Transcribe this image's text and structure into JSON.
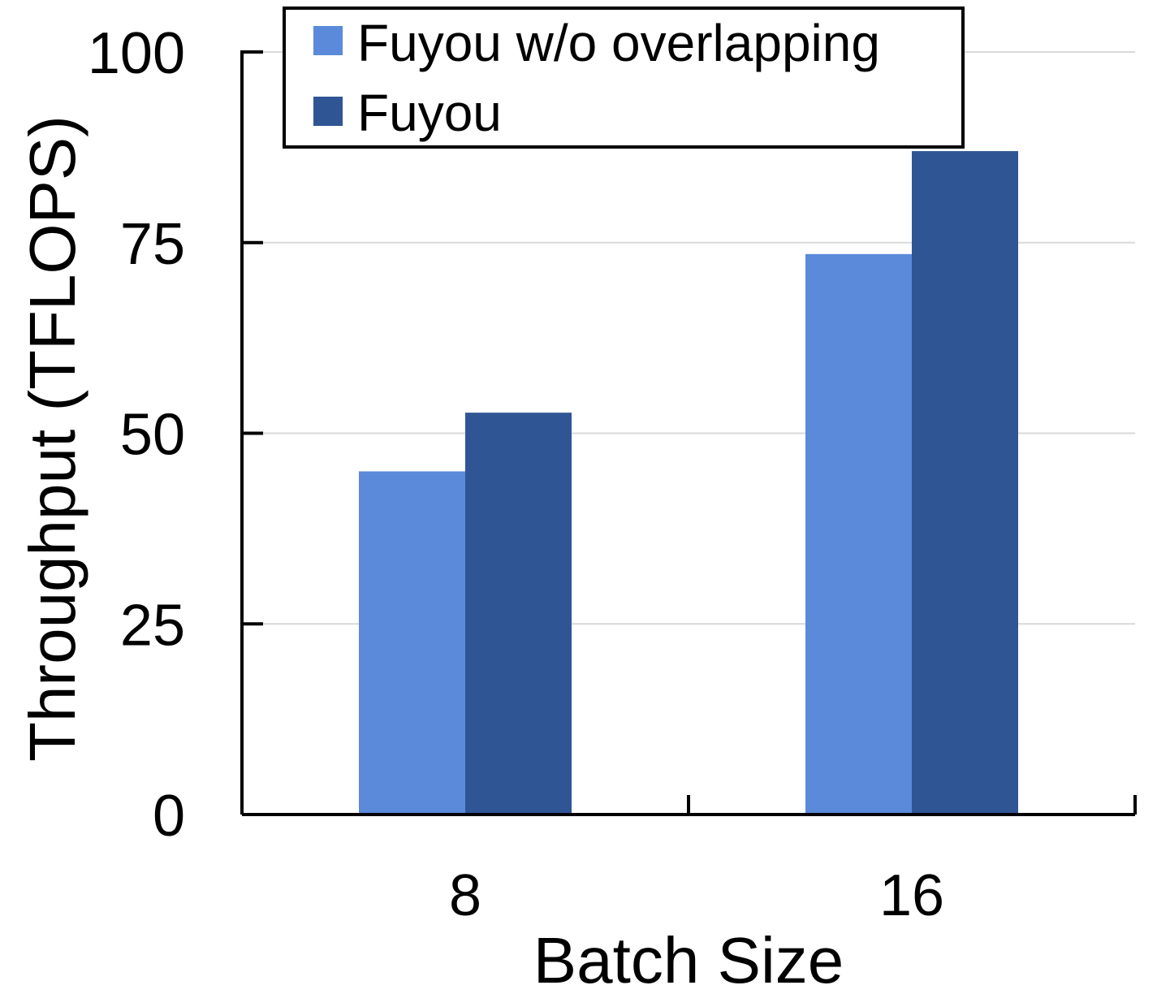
{
  "chart_data": {
    "type": "bar",
    "categories": [
      "8",
      "16"
    ],
    "series": [
      {
        "name": "Fuyou w/o overlapping",
        "values": [
          45,
          73.5
        ],
        "color": "#5A8AD9"
      },
      {
        "name": "Fuyou",
        "values": [
          52.7,
          87
        ],
        "color": "#305594"
      }
    ],
    "title": "",
    "xlabel": "Batch Size",
    "ylabel": "Throughput (TFLOPS)",
    "ylim": [
      0,
      100
    ],
    "yticks": [
      "0",
      "25",
      "50",
      "75",
      "100"
    ],
    "grid": true,
    "legend_position": "top-left"
  }
}
